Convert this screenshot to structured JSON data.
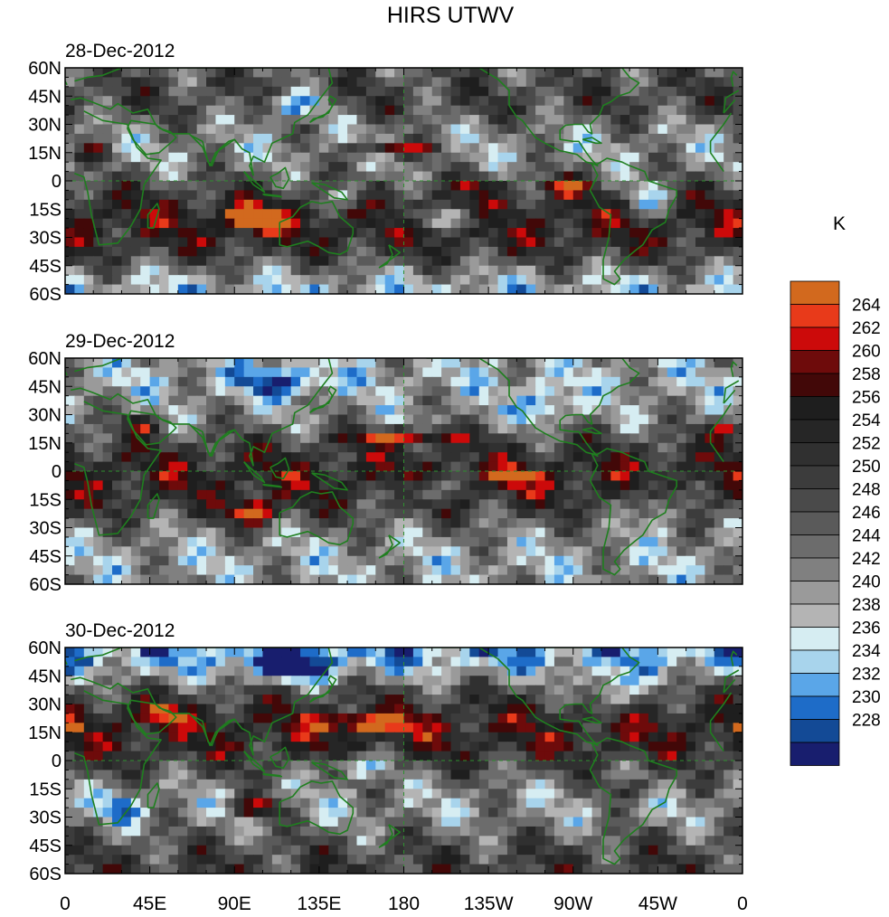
{
  "title": "HIRS UTWV",
  "unit": "K",
  "colors": {
    "coast": "#1f7f1f",
    "frame": "#000000",
    "dash": "#2f8f2f"
  },
  "lat_labels": [
    "60N",
    "45N",
    "30N",
    "15N",
    "0",
    "15S",
    "30S",
    "45S",
    "60S"
  ],
  "lon_labels": [
    "0",
    "45E",
    "90E",
    "135E",
    "180",
    "135W",
    "90W",
    "45W",
    "0"
  ],
  "lat_values": [
    60,
    45,
    30,
    15,
    0,
    -15,
    -30,
    -45,
    -60
  ],
  "lon_values": [
    0,
    45,
    90,
    135,
    180,
    225,
    270,
    315,
    360
  ],
  "extent": {
    "lon_min": 0,
    "lon_max": 360,
    "lat_min": -60,
    "lat_max": 60
  },
  "panels": [
    {
      "date": "28-Dec-2012",
      "seed": 11
    },
    {
      "date": "29-Dec-2012",
      "seed": 27
    },
    {
      "date": "30-Dec-2012",
      "seed": 43
    }
  ],
  "colorbar": {
    "levels": [
      {
        "value": "",
        "color": "#d2691e"
      },
      {
        "value": "264",
        "color": "#e83a1a"
      },
      {
        "value": "262",
        "color": "#cc0a0a"
      },
      {
        "value": "260",
        "color": "#6e0b0b"
      },
      {
        "value": "258",
        "color": "#420808"
      },
      {
        "value": "256",
        "color": "#1e1e1e"
      },
      {
        "value": "254",
        "color": "#262626"
      },
      {
        "value": "252",
        "color": "#303030"
      },
      {
        "value": "250",
        "color": "#3c3c3c"
      },
      {
        "value": "248",
        "color": "#4a4a4a"
      },
      {
        "value": "246",
        "color": "#5a5a5a"
      },
      {
        "value": "244",
        "color": "#6c6c6c"
      },
      {
        "value": "242",
        "color": "#808080"
      },
      {
        "value": "240",
        "color": "#9a9a9a"
      },
      {
        "value": "238",
        "color": "#b4b4b4"
      },
      {
        "value": "236",
        "color": "#d6edf2"
      },
      {
        "value": "234",
        "color": "#a8d4ec"
      },
      {
        "value": "232",
        "color": "#5aa6e8"
      },
      {
        "value": "230",
        "color": "#1e6cc8"
      },
      {
        "value": "228",
        "color": "#134a96"
      },
      {
        "value": "",
        "color": "#181e6e"
      }
    ]
  }
}
